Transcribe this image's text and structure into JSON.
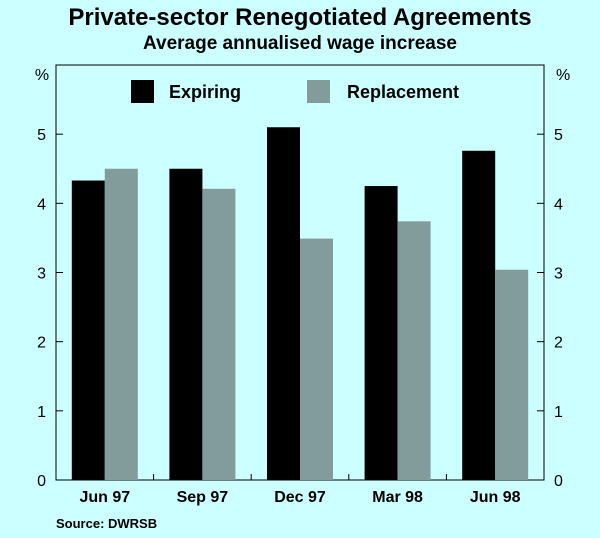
{
  "title": "Private-sector Renegotiated Agreements",
  "subtitle": "Average annualised wage increase",
  "source": "Source: DWRSB",
  "colors": {
    "background": "#ccffff",
    "expiring": "#000000",
    "replacement": "#829c9c"
  },
  "chart_data": {
    "type": "bar",
    "categories": [
      "Jun 97",
      "Sep 97",
      "Dec 97",
      "Mar 98",
      "Jun 98"
    ],
    "series": [
      {
        "name": "Expiring",
        "values": [
          4.33,
          4.5,
          5.1,
          4.25,
          4.76
        ]
      },
      {
        "name": "Replacement",
        "values": [
          4.5,
          4.21,
          3.49,
          3.74,
          3.04
        ]
      }
    ],
    "ylabel_left": "%",
    "ylabel_right": "%",
    "ylim": [
      0,
      6
    ],
    "yticks": [
      0,
      1,
      2,
      3,
      4,
      5
    ],
    "grid": false,
    "legend_position": "top"
  }
}
